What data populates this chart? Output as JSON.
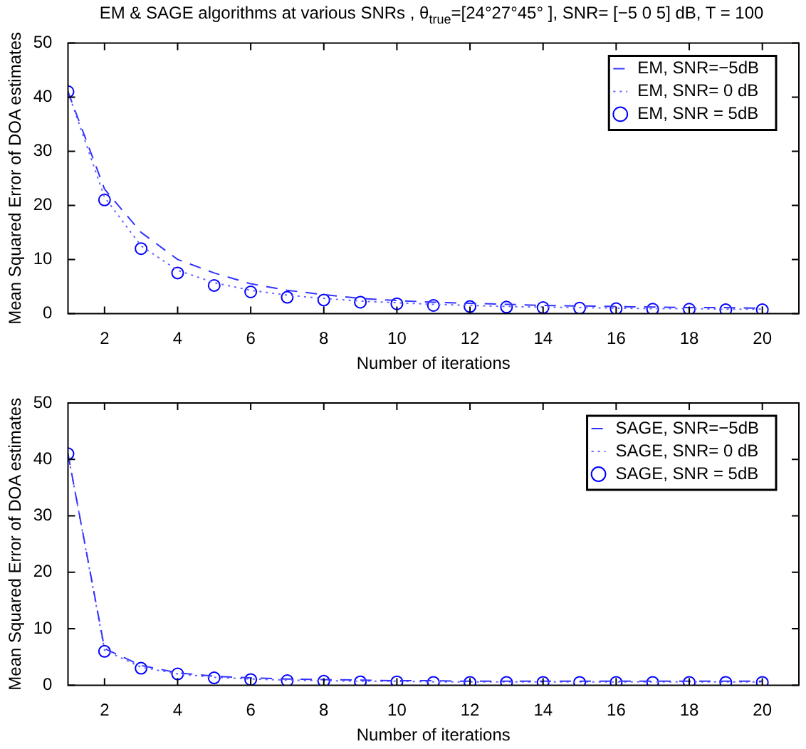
{
  "chart_data": [
    {
      "type": "line",
      "title": "EM & SAGE algorithms at various SNRs , θ$_{true}$=[24°27°45° ], SNR= [−5  0  5] dB, T = 100",
      "xlabel": "Number of iterations",
      "ylabel": "Mean Squared Error of DOA estimates",
      "x": [
        1,
        2,
        3,
        4,
        5,
        6,
        7,
        8,
        9,
        10,
        11,
        12,
        13,
        14,
        15,
        16,
        17,
        18,
        19,
        20
      ],
      "series": [
        {
          "name": "EM, SNR=−5dB",
          "color": "#3333ff",
          "line_style": "dashed",
          "marker": "none",
          "values": [
            41,
            23,
            15,
            10,
            7.5,
            5.5,
            4.3,
            3.5,
            2.8,
            2.4,
            2.1,
            1.9,
            1.7,
            1.5,
            1.4,
            1.3,
            1.2,
            1.1,
            1.1,
            1.0
          ]
        },
        {
          "name": "EM, SNR= 0 dB",
          "color": "#6666ff",
          "line_style": "dotted",
          "marker": "none",
          "values": [
            41,
            21.5,
            12.5,
            8,
            5.7,
            4.3,
            3.4,
            2.8,
            2.3,
            2.0,
            1.7,
            1.5,
            1.3,
            1.2,
            1.1,
            1.0,
            0.9,
            0.9,
            0.8,
            0.8
          ]
        },
        {
          "name": "EM, SNR = 5dB",
          "color": "#0000ff",
          "type": "scatter",
          "marker": "circle",
          "values": [
            41,
            21,
            12,
            7.5,
            5.2,
            4,
            3,
            2.5,
            2.1,
            1.8,
            1.5,
            1.3,
            1.2,
            1.1,
            1.0,
            0.9,
            0.8,
            0.8,
            0.7,
            0.7
          ]
        }
      ],
      "xlim": [
        1,
        21
      ],
      "xticks": [
        2,
        4,
        6,
        8,
        10,
        12,
        14,
        16,
        18,
        20
      ],
      "ylim": [
        0,
        50
      ],
      "yticks": [
        0,
        10,
        20,
        30,
        40,
        50
      ],
      "grid": false,
      "legend": "top right"
    },
    {
      "type": "line",
      "xlabel": "Number of iterations",
      "ylabel": "Mean Squared Error of DOA estimates",
      "x": [
        1,
        2,
        3,
        4,
        5,
        6,
        7,
        8,
        9,
        10,
        11,
        12,
        13,
        14,
        15,
        16,
        17,
        18,
        19,
        20
      ],
      "series": [
        {
          "name": "SAGE, SNR=−5dB",
          "color": "#3333ff",
          "line_style": "dashed",
          "marker": "none",
          "values": [
            41,
            6.5,
            3.5,
            2.2,
            1.6,
            1.3,
            1.1,
            1.0,
            0.9,
            0.8,
            0.8,
            0.7,
            0.7,
            0.7,
            0.7,
            0.7,
            0.7,
            0.7,
            0.7,
            0.7
          ]
        },
        {
          "name": "SAGE, SNR= 0 dB",
          "color": "#6666ff",
          "line_style": "dotted",
          "marker": "none",
          "values": [
            41,
            6.2,
            3.2,
            2.0,
            1.4,
            1.1,
            0.9,
            0.8,
            0.7,
            0.7,
            0.6,
            0.6,
            0.6,
            0.6,
            0.6,
            0.6,
            0.6,
            0.6,
            0.6,
            0.6
          ]
        },
        {
          "name": "SAGE, SNR = 5dB",
          "color": "#0000ff",
          "type": "scatter",
          "marker": "circle",
          "values": [
            41,
            6,
            3,
            2,
            1.3,
            1,
            0.8,
            0.7,
            0.6,
            0.6,
            0.5,
            0.5,
            0.5,
            0.5,
            0.5,
            0.5,
            0.5,
            0.5,
            0.5,
            0.5
          ]
        }
      ],
      "xlim": [
        1,
        21
      ],
      "xticks": [
        2,
        4,
        6,
        8,
        10,
        12,
        14,
        16,
        18,
        20
      ],
      "ylim": [
        0,
        50
      ],
      "yticks": [
        0,
        10,
        20,
        30,
        40,
        50
      ],
      "grid": false,
      "legend": "top right"
    }
  ]
}
